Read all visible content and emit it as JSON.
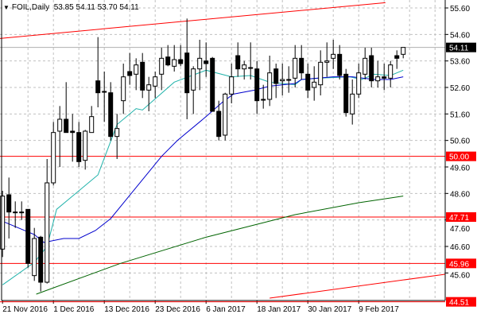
{
  "header": {
    "symbol": "FOIL,Daily",
    "ohlc": "53.85 54.11 53.70 54.11"
  },
  "colors": {
    "bull_body": "#ffffff",
    "bear_body": "#000000",
    "level": "#ff0000",
    "fast_ma": "#20b2aa",
    "slow_ma": "#0000cd",
    "long_ma": "#006400",
    "trendline": "#ff0000",
    "grid": "#c0c0c0",
    "current_price_bg": "#000000"
  },
  "chart_data": {
    "type": "candlestick",
    "title": "FOIL,Daily",
    "ylim": [
      44.56,
      55.9
    ],
    "xlim_bars": [
      -0.4,
      69.6
    ],
    "grid": true,
    "y_ticks": [
      "55.60",
      "54.60",
      "53.60",
      "52.60",
      "51.60",
      "50.60",
      "49.60",
      "48.60",
      "47.60",
      "46.60",
      "45.60"
    ],
    "x_ticks": [
      {
        "bar": 0,
        "label": "21 Nov 2016"
      },
      {
        "bar": 8,
        "label": "1 Dec 2016"
      },
      {
        "bar": 16,
        "label": "13 Dec 2016"
      },
      {
        "bar": 24,
        "label": "23 Dec 2016"
      },
      {
        "bar": 32,
        "label": "6 Jan 2017"
      },
      {
        "bar": 40,
        "label": "18 Jan 2017"
      },
      {
        "bar": 48,
        "label": "30 Jan 2017"
      },
      {
        "bar": 56,
        "label": "9 Feb 2017"
      }
    ],
    "candles": [
      [
        46.5,
        48.7,
        46.2,
        48.5
      ],
      [
        48.55,
        49.2,
        46.9,
        47.9
      ],
      [
        47.9,
        48.3,
        47.3,
        47.9
      ],
      [
        47.9,
        48.3,
        47.6,
        47.9
      ],
      [
        48.0,
        48.0,
        45.8,
        45.96
      ],
      [
        45.5,
        47.3,
        45.3,
        46.9
      ],
      [
        46.95,
        47.0,
        44.9,
        45.25
      ],
      [
        45.25,
        49.9,
        45.2,
        49.0
      ],
      [
        49.0,
        51.3,
        48.9,
        50.9
      ],
      [
        50.95,
        51.9,
        49.6,
        51.4
      ],
      [
        51.4,
        52.8,
        50.9,
        50.9
      ],
      [
        50.95,
        51.6,
        49.8,
        50.9
      ],
      [
        50.9,
        51.3,
        49.6,
        49.8
      ],
      [
        49.85,
        51.0,
        49.5,
        50.95
      ],
      [
        50.9,
        51.9,
        50.9,
        51.5
      ],
      [
        52.85,
        54.5,
        51.85,
        52.4
      ],
      [
        52.45,
        53.2,
        51.3,
        52.45
      ],
      [
        52.4,
        52.8,
        50.6,
        50.75
      ],
      [
        50.75,
        51.6,
        49.9,
        51.05
      ],
      [
        52.1,
        53.5,
        51.6,
        53.0
      ],
      [
        53.2,
        53.9,
        52.7,
        53.05
      ],
      [
        53.1,
        53.7,
        52.5,
        53.45
      ],
      [
        53.55,
        53.9,
        52.2,
        52.5
      ],
      [
        52.5,
        53.0,
        51.7,
        52.7
      ],
      [
        52.65,
        53.2,
        52.2,
        53.0
      ],
      [
        53.1,
        54.1,
        52.5,
        53.7
      ],
      [
        53.75,
        54.2,
        53.4,
        53.45
      ],
      [
        53.4,
        54.2,
        53.2,
        53.65
      ],
      [
        53.65,
        54.2,
        53.4,
        53.5
      ],
      [
        53.9,
        55.2,
        51.4,
        52.4
      ],
      [
        52.5,
        53.4,
        51.6,
        53.3
      ],
      [
        53.3,
        54.4,
        52.5,
        53.7
      ],
      [
        53.6,
        54.3,
        53.0,
        53.5
      ],
      [
        53.7,
        53.75,
        51.7,
        51.7
      ],
      [
        51.7,
        52.1,
        50.6,
        50.75
      ],
      [
        50.8,
        52.4,
        50.6,
        52.35
      ],
      [
        52.35,
        53.5,
        52.0,
        53.0
      ],
      [
        53.8,
        54.3,
        53.0,
        53.3
      ],
      [
        53.3,
        53.6,
        52.9,
        53.45
      ],
      [
        53.35,
        54.3,
        52.9,
        53.35
      ],
      [
        53.3,
        53.6,
        51.6,
        52.1
      ],
      [
        52.15,
        52.7,
        51.8,
        52.15
      ],
      [
        52.15,
        53.8,
        51.9,
        53.15
      ],
      [
        53.3,
        53.5,
        52.2,
        52.75
      ],
      [
        52.85,
        53.5,
        52.3,
        52.9
      ],
      [
        52.9,
        53.4,
        52.4,
        52.9
      ],
      [
        52.95,
        54.2,
        52.6,
        53.7
      ],
      [
        53.7,
        54.2,
        52.9,
        53.15
      ],
      [
        53.1,
        53.5,
        52.2,
        52.5
      ],
      [
        52.6,
        53.4,
        52.1,
        52.8
      ],
      [
        52.7,
        54.0,
        52.3,
        53.55
      ],
      [
        53.55,
        54.3,
        53.0,
        53.6
      ],
      [
        53.7,
        54.4,
        53.3,
        53.85
      ],
      [
        53.85,
        54.2,
        52.9,
        53.05
      ],
      [
        53.1,
        53.3,
        51.5,
        51.65
      ],
      [
        51.6,
        52.9,
        51.2,
        52.35
      ],
      [
        52.35,
        53.5,
        52.2,
        53.15
      ],
      [
        53.1,
        54.1,
        52.9,
        53.7
      ],
      [
        53.8,
        54.1,
        52.6,
        52.85
      ],
      [
        52.85,
        53.6,
        52.6,
        53.0
      ],
      [
        53.0,
        53.5,
        52.5,
        52.95
      ],
      [
        52.95,
        53.6,
        52.6,
        53.45
      ],
      [
        53.8,
        54.0,
        53.3,
        53.7
      ],
      [
        53.85,
        54.11,
        53.7,
        54.11
      ]
    ],
    "candle_fields": [
      "open",
      "high",
      "low",
      "close"
    ],
    "moving_averages": [
      {
        "role": "fast",
        "points": [
          [
            0,
            45.15
          ],
          [
            5,
            46.0
          ],
          [
            7,
            46.6
          ],
          [
            8.5,
            48.0
          ],
          [
            15,
            49.3
          ],
          [
            18,
            51.2
          ],
          [
            21,
            51.8
          ],
          [
            22,
            51.75
          ],
          [
            27,
            52.8
          ],
          [
            32,
            53.25
          ],
          [
            36,
            53.0
          ],
          [
            39,
            53.05
          ],
          [
            42,
            52.8
          ],
          [
            46,
            52.7
          ],
          [
            47,
            52.9
          ],
          [
            49.6,
            52.95
          ],
          [
            54.6,
            53.0
          ],
          [
            56.5,
            52.9
          ],
          [
            58.4,
            53.1
          ],
          [
            61,
            53.05
          ],
          [
            63,
            53.25
          ]
        ]
      },
      {
        "role": "slow",
        "points": [
          [
            0,
            47.55
          ],
          [
            5,
            47.05
          ],
          [
            6.5,
            46.75
          ],
          [
            9.6,
            46.9
          ],
          [
            12,
            46.9
          ],
          [
            14.6,
            47.2
          ],
          [
            17,
            47.65
          ],
          [
            25,
            50.0
          ],
          [
            27.5,
            50.6
          ],
          [
            32,
            51.5
          ],
          [
            34.6,
            52.05
          ],
          [
            36.3,
            52.35
          ],
          [
            39.6,
            52.5
          ],
          [
            42,
            52.65
          ],
          [
            46,
            52.75
          ],
          [
            47,
            52.9
          ],
          [
            52,
            53.0
          ],
          [
            55,
            53.0
          ],
          [
            58.4,
            52.9
          ],
          [
            61,
            52.9
          ],
          [
            63,
            53.0
          ]
        ]
      },
      {
        "role": "long",
        "points": [
          [
            5.3,
            44.8
          ],
          [
            18.4,
            45.95
          ],
          [
            32,
            46.95
          ],
          [
            46,
            47.8
          ],
          [
            56,
            48.25
          ],
          [
            63,
            48.5
          ]
        ]
      }
    ],
    "trendlines": [
      {
        "from": [
          -0.4,
          54.45
        ],
        "to": [
          60.2,
          55.8
        ]
      },
      {
        "from": [
          42,
          44.65
        ],
        "to": [
          69.6,
          45.55
        ]
      }
    ],
    "levels": [
      {
        "value": 50.0,
        "label": "50.00"
      },
      {
        "value": 47.71,
        "label": "47.71"
      },
      {
        "value": 45.96,
        "label": "45.96"
      },
      {
        "value": 44.51,
        "label": "44.51"
      }
    ],
    "current_price": {
      "value": 54.11,
      "label": "54.11"
    }
  }
}
